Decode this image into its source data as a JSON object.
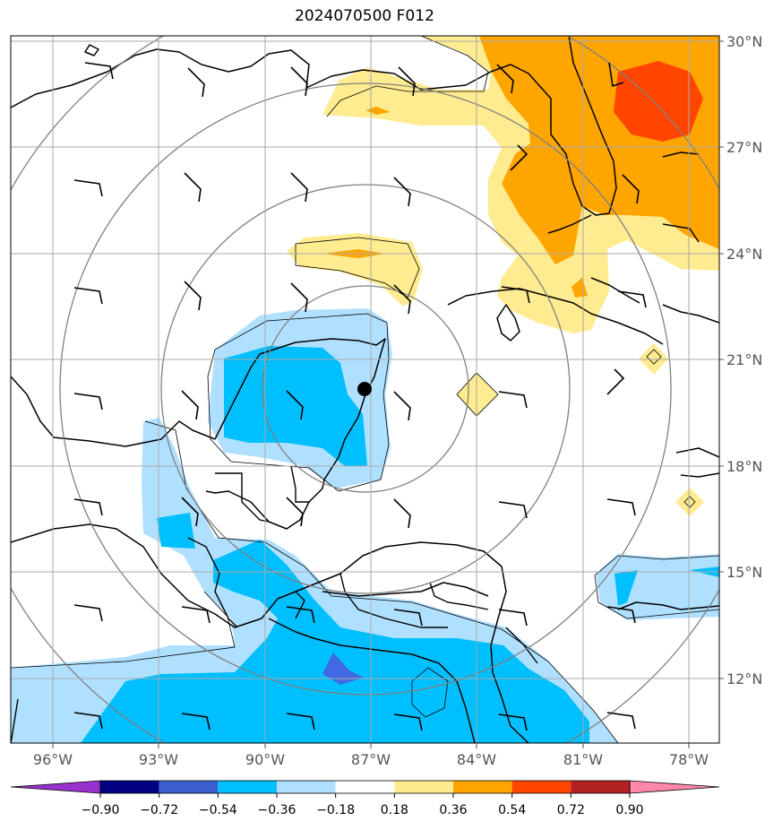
{
  "title": "2024070500 F012",
  "map": {
    "lon_ticks": [
      "96°W",
      "93°W",
      "90°W",
      "87°W",
      "84°W",
      "81°W",
      "78°W"
    ],
    "lat_ticks": [
      "30°N",
      "27°N",
      "24°N",
      "21°N",
      "18°N",
      "15°N",
      "12°N"
    ],
    "storm_center": {
      "lon": -87.0,
      "lat": 20.2
    },
    "colors": {
      "orange": "#ffa500",
      "red_orange": "#ff4500",
      "light_yellow": "#ffeb90",
      "light_blue": "#b0e0ff",
      "blue": "#00bfff",
      "slate_blue": "#4169e1",
      "gridline": "#aaaaaa",
      "range_ring": "#808080"
    }
  },
  "colorbar": {
    "labels": [
      "−0.90",
      "−0.72",
      "−0.54",
      "−0.36",
      "−0.18",
      "0.18",
      "0.36",
      "0.54",
      "0.72",
      "0.90"
    ],
    "colors": [
      "#9932cc",
      "#000080",
      "#3a5fcd",
      "#00bfff",
      "#b0e0ff",
      "#ffffff",
      "#ffeb8f",
      "#ffa500",
      "#ff4500",
      "#b22222",
      "#ff88aa"
    ]
  }
}
